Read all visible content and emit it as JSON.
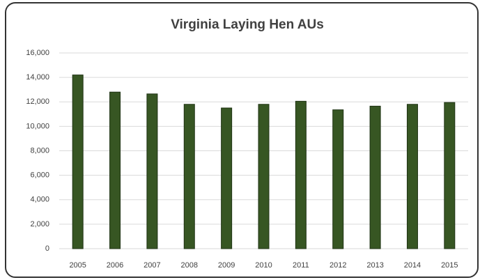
{
  "chart_data": {
    "type": "bar",
    "title": "Virginia Laying Hen AUs",
    "categories": [
      "2005",
      "2006",
      "2007",
      "2008",
      "2009",
      "2010",
      "2011",
      "2012",
      "2013",
      "2014",
      "2015"
    ],
    "values": [
      14200,
      12800,
      12650,
      11800,
      11500,
      11800,
      12050,
      11350,
      11650,
      11800,
      11950
    ],
    "color": "#375623",
    "ylim": [
      0,
      16000
    ],
    "yticks": [
      0,
      {
        "value": 2000,
        "label": "2,000"
      },
      {
        "value": 4000,
        "label": "4,000"
      },
      {
        "value": 6000,
        "label": "6,000"
      },
      {
        "value": 8000,
        "label": "8,000"
      },
      {
        "value": 10000,
        "label": "10,000"
      },
      {
        "value": 12000,
        "label": "12,000"
      },
      {
        "value": 14000,
        "label": "14,000"
      },
      {
        "value": 16000,
        "label": "16,000"
      }
    ],
    "grid": true
  }
}
